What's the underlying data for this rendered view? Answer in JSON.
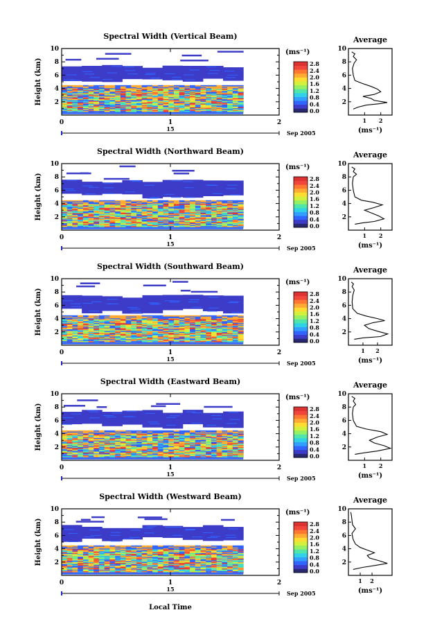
{
  "panels": [
    {
      "title": "Spectral Width (Vertical Beam)",
      "profile": [
        [
          0.3,
          0.9
        ],
        [
          0.6,
          1.2
        ],
        [
          1.1,
          1.5
        ],
        [
          1.9,
          1.7
        ],
        [
          2.4,
          1.9
        ],
        [
          1.6,
          2.2
        ],
        [
          1.4,
          2.5
        ],
        [
          0.9,
          2.8
        ],
        [
          1.6,
          3.1
        ],
        [
          2.0,
          3.5
        ],
        [
          1.8,
          3.9
        ],
        [
          1.4,
          4.3
        ],
        [
          0.8,
          4.8
        ],
        [
          0.4,
          5.2
        ],
        [
          0.3,
          6.0
        ],
        [
          0.25,
          7.0
        ],
        [
          0.35,
          7.8
        ],
        [
          0.5,
          8.3
        ],
        [
          0.3,
          8.8
        ],
        [
          0.4,
          9.2
        ],
        [
          0.2,
          9.5
        ]
      ]
    },
    {
      "title": "Spectral Width (Northward Beam)",
      "profile": [
        [
          0.4,
          0.9
        ],
        [
          0.9,
          1.1
        ],
        [
          1.6,
          1.3
        ],
        [
          2.2,
          1.7
        ],
        [
          1.9,
          2.1
        ],
        [
          1.4,
          2.6
        ],
        [
          1.0,
          3.0
        ],
        [
          1.6,
          3.4
        ],
        [
          2.1,
          3.8
        ],
        [
          1.5,
          4.2
        ],
        [
          0.8,
          4.5
        ],
        [
          0.4,
          5.0
        ],
        [
          0.3,
          6.0
        ],
        [
          0.25,
          7.0
        ],
        [
          0.3,
          8.0
        ],
        [
          0.5,
          8.4
        ],
        [
          0.3,
          8.8
        ],
        [
          0.4,
          9.2
        ],
        [
          0.2,
          9.5
        ]
      ]
    },
    {
      "title": "Spectral Width (Southward Beam)",
      "profile": [
        [
          0.4,
          0.9
        ],
        [
          1.0,
          1.1
        ],
        [
          2.2,
          1.3
        ],
        [
          2.7,
          1.7
        ],
        [
          2.0,
          2.1
        ],
        [
          1.4,
          2.5
        ],
        [
          1.1,
          3.0
        ],
        [
          1.7,
          3.4
        ],
        [
          2.5,
          3.7
        ],
        [
          2.0,
          4.0
        ],
        [
          1.2,
          4.4
        ],
        [
          0.6,
          4.8
        ],
        [
          0.3,
          5.5
        ],
        [
          0.25,
          6.5
        ],
        [
          0.3,
          7.5
        ],
        [
          0.4,
          8.3
        ],
        [
          0.25,
          8.8
        ],
        [
          0.35,
          9.2
        ],
        [
          0.2,
          9.5
        ]
      ]
    },
    {
      "title": "Spectral Width (Eastward Beam)",
      "profile": [
        [
          0.4,
          0.9
        ],
        [
          0.9,
          1.1
        ],
        [
          1.8,
          1.4
        ],
        [
          2.6,
          1.8
        ],
        [
          2.2,
          2.2
        ],
        [
          1.6,
          2.6
        ],
        [
          1.3,
          3.0
        ],
        [
          1.8,
          3.5
        ],
        [
          2.4,
          3.9
        ],
        [
          2.0,
          4.3
        ],
        [
          1.1,
          4.7
        ],
        [
          0.5,
          5.1
        ],
        [
          0.3,
          6.0
        ],
        [
          0.25,
          7.0
        ],
        [
          0.3,
          8.0
        ],
        [
          0.45,
          8.4
        ],
        [
          0.3,
          8.9
        ],
        [
          0.4,
          9.3
        ],
        [
          0.2,
          9.6
        ]
      ]
    },
    {
      "title": "Spectral Width (Westward Beam)",
      "profile": [
        [
          0.4,
          0.9
        ],
        [
          1.2,
          1.2
        ],
        [
          2.3,
          1.5
        ],
        [
          3.3,
          1.8
        ],
        [
          2.6,
          2.2
        ],
        [
          1.8,
          2.6
        ],
        [
          1.6,
          3.0
        ],
        [
          2.2,
          3.4
        ],
        [
          1.6,
          3.8
        ],
        [
          1.0,
          4.2
        ],
        [
          0.6,
          4.7
        ],
        [
          0.4,
          5.4
        ],
        [
          0.3,
          6.3
        ],
        [
          0.6,
          7.0
        ],
        [
          0.35,
          7.6
        ],
        [
          0.3,
          8.3
        ],
        [
          0.25,
          9.0
        ],
        [
          0.2,
          9.5
        ]
      ]
    }
  ],
  "ylabel": "Height (km)",
  "unit": "(ms⁻¹)",
  "avg_title": "Average",
  "avg_xlabel": "(ms⁻¹)",
  "date_day": "15",
  "date_suffix": "Sep 2005",
  "xlabel_bottom": "Local Time",
  "time_ticks": [
    "0",
    "1",
    "2"
  ],
  "height_ticks": [
    "2",
    "4",
    "6",
    "8",
    "10"
  ],
  "avg_height_ticks": [
    "2",
    "4",
    "6",
    "8",
    "10"
  ],
  "avg_x_ticks": [
    [
      "1",
      "2"
    ],
    [
      "1",
      "2"
    ],
    [
      "1",
      "2"
    ],
    [
      "1",
      "2"
    ],
    [
      "1",
      "2"
    ]
  ],
  "colorbar_ticks": [
    "0.0",
    "0.4",
    "0.8",
    "1.2",
    "1.6",
    "2.0",
    "2.4",
    "2.8"
  ],
  "colors": {
    "scale": [
      "#282870",
      "#3c3cc8",
      "#3264ff",
      "#32a0ff",
      "#32d2e6",
      "#50e6aa",
      "#96f064",
      "#d2f03c",
      "#ffdc32",
      "#ffaa32",
      "#ff7832",
      "#f0463c",
      "#dc3232"
    ],
    "axis": "#000000",
    "profile": "#000000",
    "tickmark_blue": "#2020c0"
  },
  "chart_data": [
    {
      "type": "heatmap",
      "title": "Spectral Width (Vertical Beam)",
      "xlabel": "Local Time",
      "ylabel": "Height (km)",
      "xlim": [
        0,
        2
      ],
      "ylim": [
        0,
        10
      ],
      "colorbar_range": [
        0.0,
        2.8
      ],
      "colorbar_unit": "(ms⁻¹)",
      "data_extent_hours": [
        0,
        1.67
      ]
    },
    {
      "type": "heatmap",
      "title": "Spectral Width (Northward Beam)",
      "xlabel": "Local Time",
      "ylabel": "Height (km)",
      "xlim": [
        0,
        2
      ],
      "ylim": [
        0,
        10
      ],
      "colorbar_range": [
        0.0,
        2.8
      ],
      "colorbar_unit": "(ms⁻¹)",
      "data_extent_hours": [
        0,
        1.67
      ]
    },
    {
      "type": "heatmap",
      "title": "Spectral Width (Southward Beam)",
      "xlabel": "Local Time",
      "ylabel": "Height (km)",
      "xlim": [
        0,
        2
      ],
      "ylim": [
        0,
        10
      ],
      "colorbar_range": [
        0.0,
        2.8
      ],
      "colorbar_unit": "(ms⁻¹)",
      "data_extent_hours": [
        0,
        1.67
      ]
    },
    {
      "type": "heatmap",
      "title": "Spectral Width (Eastward Beam)",
      "xlabel": "Local Time",
      "ylabel": "Height (km)",
      "xlim": [
        0,
        2
      ],
      "ylim": [
        0,
        10
      ],
      "colorbar_range": [
        0.0,
        2.8
      ],
      "colorbar_unit": "(ms⁻¹)",
      "data_extent_hours": [
        0,
        1.67
      ]
    },
    {
      "type": "heatmap",
      "title": "Spectral Width (Westward Beam)",
      "xlabel": "Local Time",
      "ylabel": "Height (km)",
      "xlim": [
        0,
        2
      ],
      "ylim": [
        0,
        10
      ],
      "colorbar_range": [
        0.0,
        2.8
      ],
      "colorbar_unit": "(ms⁻¹)",
      "data_extent_hours": [
        0,
        1.67
      ]
    }
  ]
}
